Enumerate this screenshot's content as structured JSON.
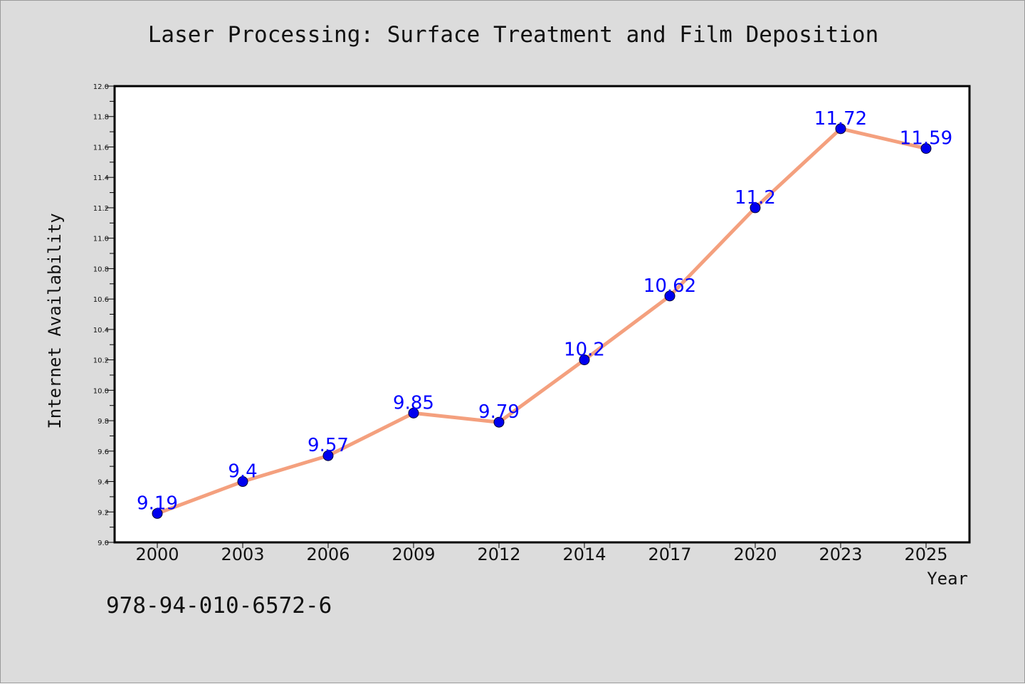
{
  "figure": {
    "title": "Laser Processing: Surface Treatment and Film Deposition",
    "footer_code": "978-94-010-6572-6",
    "background_color": "#dcdcdc"
  },
  "chart_data": {
    "type": "line",
    "title": "Laser Processing: Surface Treatment and Film Deposition",
    "xlabel": "Year",
    "ylabel": "Internet Availability",
    "categories": [
      "2000",
      "2003",
      "2006",
      "2009",
      "2012",
      "2014",
      "2017",
      "2020",
      "2023",
      "2025"
    ],
    "series": [
      {
        "values": [
          9.19,
          9.4,
          9.57,
          9.85,
          9.79,
          10.2,
          10.62,
          11.2,
          11.72,
          11.59
        ],
        "line_color": "#f4a07e",
        "marker_color": "#0000ee",
        "label_color": "#0000ff"
      }
    ],
    "data_labels": [
      "9.19",
      "9.4",
      "9.57",
      "9.85",
      "9.79",
      "10.2",
      "10.62",
      "11.2",
      "11.72",
      "11.59"
    ],
    "ylim": [
      9.0,
      12.0
    ],
    "yticks": [
      "9.0",
      "9.2",
      "9.4",
      "9.6",
      "9.8",
      "10.0",
      "10.2",
      "10.4",
      "10.6",
      "10.8",
      "11.0",
      "11.2",
      "11.4",
      "11.6",
      "11.8",
      "12.0"
    ],
    "grid": false,
    "legend": "none"
  }
}
